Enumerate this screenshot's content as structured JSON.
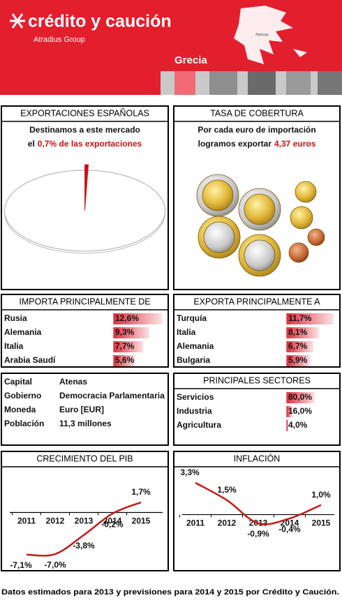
{
  "header": {
    "brand": "crédito y caución",
    "group": "Atradius Group",
    "country": "Grecia",
    "map_label": "Atenas"
  },
  "coverage": {
    "title": "TASA DE COBERTURA",
    "line1": "Por cada euro de importación",
    "line2_lead": "logramos exportar",
    "line2_highlight": "4,37 euros"
  },
  "country_info": {
    "rows": [
      [
        "Capital",
        "Atenas"
      ],
      [
        "Gobierno",
        "Democracia Parlamentaria"
      ],
      [
        "Moneda",
        "Euro [EUR]"
      ],
      [
        "Población",
        "11,3 millones"
      ]
    ]
  },
  "footer": "Datos estimados para 2013 y previsiones para 2014 y 2015 por Crédito y Caución.",
  "chart_data": [
    {
      "type": "pie",
      "title": "EXPORTACIONES ESPAÑOLAS",
      "subtitle": "Destinamos a este mercado",
      "subtitle_lead": "el",
      "subtitle_highlight": "0,7% de las exportaciones",
      "values": [
        0.7
      ],
      "color": "#cc1010"
    },
    {
      "type": "bar",
      "title": "IMPORTA PRINCIPALMENTE DE",
      "categories": [
        "Rusia",
        "Alemania",
        "Italia",
        "Arabia Saudí"
      ],
      "values": [
        12.6,
        9.3,
        7.7,
        5.6
      ],
      "value_labels": [
        "12,6%",
        "9,3%",
        "7,7%",
        "5,6%"
      ],
      "color": "#e0404f"
    },
    {
      "type": "bar",
      "title": "EXPORTA PRINCIPALMENTE A",
      "categories": [
        "Turquía",
        "Italia",
        "Alemania",
        "Bulgaria"
      ],
      "values": [
        11.7,
        8.1,
        6.7,
        5.9
      ],
      "value_labels": [
        "11,7%",
        "8,1%",
        "6,7%",
        "5,9%"
      ],
      "color": "#e0404f"
    },
    {
      "type": "bar",
      "title": "PRINCIPALES SECTORES",
      "categories": [
        "Servicios",
        "Industria",
        "Agricultura"
      ],
      "values": [
        80.0,
        16.0,
        4.0
      ],
      "value_labels": [
        "80,0%",
        "16,0%",
        "4,0%"
      ],
      "color": "#e0404f"
    },
    {
      "type": "line",
      "title": "CRECIMIENTO DEL PIB",
      "categories": [
        "2011",
        "2012",
        "2013",
        "2014",
        "2015"
      ],
      "values": [
        -7.1,
        -7.0,
        -3.8,
        -0.2,
        1.7
      ],
      "value_labels": [
        "-7,1%",
        "-7,0%",
        "-3,8%",
        "-0,2%",
        "1,7%"
      ],
      "color": "#c81818"
    },
    {
      "type": "line",
      "title": "INFLACIÓN",
      "categories": [
        "2011",
        "2012",
        "2013",
        "2014",
        "2015"
      ],
      "values": [
        3.3,
        1.5,
        -0.9,
        -0.4,
        1.0
      ],
      "value_labels": [
        "3,3%",
        "1,5%",
        "-0,9%",
        "-0,4%",
        "1,0%"
      ],
      "color": "#c81818"
    }
  ]
}
